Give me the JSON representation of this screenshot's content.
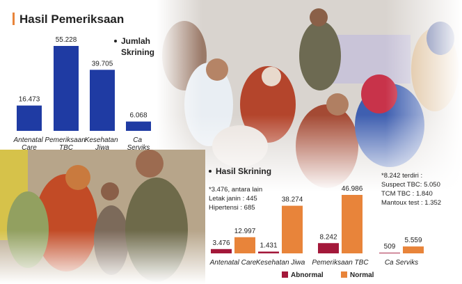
{
  "title": "Hasil Pemeriksaan",
  "chart_data": [
    {
      "type": "bar",
      "title": "Jumlah Skrining",
      "categories": [
        "Antenatal Care",
        "Pemeriksaan TBC",
        "Kesehatan Jiwa",
        "Ca Serviks"
      ],
      "values": [
        16473,
        55228,
        39705,
        6068
      ],
      "value_labels": [
        "16.473",
        "55.228",
        "39.705",
        "6.068"
      ],
      "color": "#1f3ba3"
    },
    {
      "type": "grouped_bar",
      "title": "Hasil Skrining",
      "categories": [
        "Antenatal Care",
        "Kesehatan Jiwa",
        "Pemeriksaan TBC",
        "Ca Serviks"
      ],
      "series": [
        {
          "name": "Abnormal",
          "color": "#a3183a",
          "values": [
            3476,
            1431,
            8242,
            509
          ],
          "value_labels": [
            "3.476",
            "1.431",
            "8.242",
            "509"
          ]
        },
        {
          "name": "Normal",
          "color": "#e8843a",
          "values": [
            12997,
            38274,
            46986,
            5559
          ],
          "value_labels": [
            "12.997",
            "38.274",
            "46.986",
            "5.559"
          ]
        }
      ],
      "annotations": [
        [
          "*3.476, antara lain",
          "Letak janin : 445",
          "Hipertensi : 685"
        ],
        [
          "*8.242 terdiri :",
          "Suspect TBC: 5.050",
          "TCM TBC : 1.840",
          "Mantoux test : 1.352"
        ]
      ]
    }
  ]
}
